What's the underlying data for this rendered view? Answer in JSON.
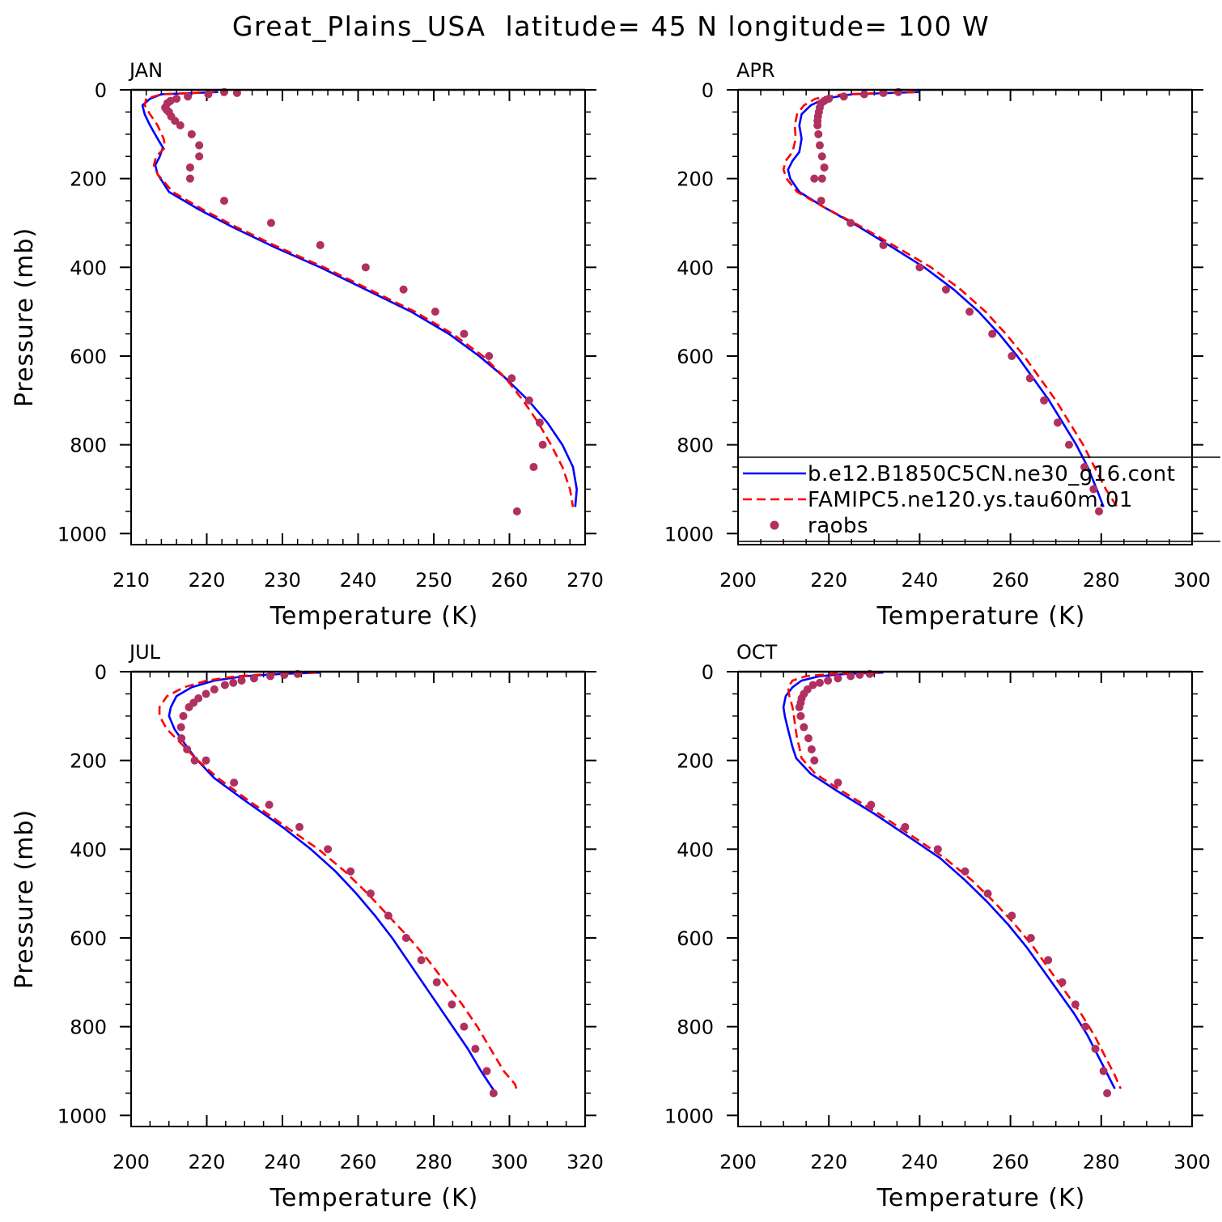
{
  "figure": {
    "title": "Great_Plains_USA  latitude= 45 N longitude= 100 W"
  },
  "legend": {
    "entries": [
      {
        "label": "b.e12.B1850C5CN.ne30_g16.cont",
        "color": "#0000ff",
        "style": "solid"
      },
      {
        "label": "FAMIPC5.ne120.ys.tau60m.01",
        "color": "#ff0000",
        "style": "dashed"
      },
      {
        "label": "raobs",
        "color": "#b03060",
        "style": "dots"
      }
    ],
    "placement": "lower-right of APR panel"
  },
  "chart_data": [
    {
      "type": "line",
      "panel": "JAN",
      "title": "JAN",
      "xlabel": "Temperature (K)",
      "ylabel": "Pressure (mb)",
      "xlim": [
        210,
        270
      ],
      "ylim": [
        1025,
        0
      ],
      "xticks": [
        210,
        220,
        230,
        240,
        250,
        260,
        270
      ],
      "yticks": [
        0,
        200,
        400,
        600,
        800,
        1000
      ],
      "series": [
        {
          "name": "b.e12.B1850C5CN.ne30_g16.cont",
          "style": "solid",
          "color": "#0000ff",
          "x": [
            221.5,
            214.0,
            212.5,
            211.5,
            211.8,
            212.5,
            213.5,
            214.2,
            213.8,
            213.2,
            213.5,
            215.0,
            219.0,
            223.5,
            229.0,
            235.0,
            241.0,
            247.0,
            252.0,
            256.0,
            259.5,
            262.5,
            265.0,
            267.0,
            268.4,
            268.9,
            268.7
          ],
          "y": [
            5,
            10,
            20,
            35,
            55,
            80,
            110,
            130,
            150,
            170,
            190,
            230,
            270,
            310,
            355,
            400,
            450,
            500,
            550,
            600,
            650,
            700,
            750,
            800,
            850,
            900,
            940
          ]
        },
        {
          "name": "FAMIPC5.ne120.ys.tau60m.01",
          "style": "dashed",
          "color": "#ff0000",
          "x": [
            221.0,
            214.0,
            212.0,
            211.8,
            212.5,
            213.5,
            214.3,
            214.5,
            213.3,
            213.0,
            213.5,
            215.5,
            219.5,
            224.0,
            229.5,
            235.5,
            241.5,
            247.5,
            252.5,
            256.5,
            259.5,
            261.8,
            263.8,
            265.5,
            267.0,
            268.0,
            268.4
          ],
          "y": [
            5,
            10,
            20,
            35,
            55,
            80,
            110,
            130,
            150,
            170,
            190,
            230,
            270,
            310,
            355,
            400,
            450,
            500,
            550,
            600,
            650,
            700,
            750,
            800,
            850,
            900,
            940
          ]
        },
        {
          "name": "raobs",
          "style": "dots",
          "color": "#b03060",
          "x": [
            224.0,
            222.3,
            220.2,
            217.5,
            216.0,
            215.2,
            214.8,
            214.5,
            214.7,
            215.0,
            215.3,
            215.8,
            216.5,
            218.0,
            219.0,
            219.0,
            217.8,
            217.8,
            222.3,
            228.5,
            235.0,
            241.0,
            246.0,
            250.2,
            254.0,
            257.3,
            260.3,
            262.6,
            264.0,
            264.4,
            263.2,
            261.0
          ],
          "y": [
            7,
            5,
            10,
            15,
            20,
            25,
            30,
            40,
            45,
            50,
            60,
            70,
            80,
            100,
            125,
            150,
            175,
            200,
            250,
            300,
            350,
            400,
            450,
            500,
            550,
            600,
            650,
            700,
            750,
            800,
            850,
            950
          ]
        }
      ]
    },
    {
      "type": "line",
      "panel": "APR",
      "title": "APR",
      "xlabel": "Temperature (K)",
      "ylabel": "",
      "xlim": [
        200,
        300
      ],
      "ylim": [
        1025,
        0
      ],
      "xticks": [
        200,
        220,
        240,
        260,
        280,
        300
      ],
      "yticks": [
        0,
        200,
        400,
        600,
        800,
        1000
      ],
      "series": [
        {
          "name": "b.e12.B1850C5CN.ne30_g16.cont",
          "style": "solid",
          "color": "#0000ff",
          "x": [
            240.0,
            225.0,
            219.0,
            216.0,
            214.0,
            213.5,
            214.0,
            213.5,
            212.0,
            211.0,
            211.5,
            213.5,
            219.0,
            226.0,
            234.0,
            241.0,
            247.5,
            253.0,
            257.5,
            261.5,
            265.0,
            268.5,
            271.5,
            274.5,
            277.0,
            279.0,
            280.5
          ],
          "y": [
            5,
            10,
            20,
            35,
            55,
            80,
            110,
            140,
            160,
            180,
            200,
            230,
            265,
            305,
            355,
            400,
            450,
            500,
            550,
            600,
            650,
            700,
            750,
            800,
            850,
            900,
            940
          ]
        },
        {
          "name": "FAMIPC5.ne120.ys.tau60m.01",
          "style": "dashed",
          "color": "#ff0000",
          "x": [
            239.0,
            223.0,
            217.0,
            214.5,
            213.0,
            212.5,
            212.7,
            212.0,
            210.5,
            210.0,
            210.7,
            213.0,
            219.0,
            226.5,
            235.0,
            242.5,
            249.0,
            254.5,
            259.0,
            263.0,
            266.5,
            270.0,
            273.0,
            276.0,
            278.5,
            281.0,
            283.5
          ],
          "y": [
            5,
            10,
            20,
            35,
            55,
            80,
            110,
            140,
            160,
            180,
            200,
            230,
            265,
            305,
            355,
            400,
            450,
            500,
            550,
            600,
            650,
            700,
            750,
            800,
            850,
            900,
            940
          ]
        },
        {
          "name": "raobs",
          "style": "dots",
          "color": "#b03060",
          "x": [
            235.3,
            232.0,
            227.8,
            223.3,
            220.0,
            219.0,
            218.3,
            218.0,
            217.8,
            217.6,
            217.5,
            217.5,
            217.7,
            218.0,
            218.5,
            219.0,
            218.5,
            216.8,
            218.3,
            224.8,
            232.0,
            240.0,
            245.8,
            251.0,
            256.0,
            260.3,
            264.3,
            267.4,
            270.4,
            272.9,
            276.3,
            278.3,
            279.5
          ],
          "y": [
            5,
            7,
            10,
            15,
            20,
            25,
            30,
            40,
            50,
            60,
            70,
            80,
            100,
            125,
            150,
            175,
            200,
            200,
            250,
            300,
            350,
            400,
            450,
            500,
            550,
            600,
            650,
            700,
            750,
            800,
            850,
            900,
            950
          ]
        }
      ]
    },
    {
      "type": "line",
      "panel": "JUL",
      "title": "JUL",
      "xlabel": "Temperature (K)",
      "ylabel": "Pressure (mb)",
      "xlim": [
        200,
        320
      ],
      "ylim": [
        1025,
        0
      ],
      "xticks": [
        200,
        220,
        240,
        260,
        280,
        300,
        320
      ],
      "yticks": [
        0,
        200,
        400,
        600,
        800,
        1000
      ],
      "series": [
        {
          "name": "b.e12.B1850C5CN.ne30_g16.cont",
          "style": "solid",
          "color": "#0000ff",
          "x": [
            250.0,
            240.0,
            230.0,
            222.0,
            216.0,
            212.0,
            210.5,
            210.0,
            211.5,
            214.0,
            217.0,
            222.0,
            230.0,
            240.0,
            247.5,
            254.0,
            259.5,
            264.5,
            269.0,
            273.0,
            277.0,
            281.0,
            285.0,
            289.0,
            292.5,
            294.8,
            296.0
          ],
          "y": [
            2,
            5,
            10,
            20,
            35,
            55,
            80,
            100,
            130,
            160,
            195,
            240,
            290,
            350,
            400,
            450,
            500,
            550,
            600,
            650,
            700,
            750,
            800,
            850,
            900,
            930,
            945
          ]
        },
        {
          "name": "FAMIPC5.ne120.ys.tau60m.01",
          "style": "dashed",
          "color": "#ff0000",
          "x": [
            249.0,
            238.0,
            228.0,
            220.0,
            214.0,
            209.5,
            207.5,
            207.5,
            209.5,
            213.0,
            217.0,
            223.0,
            231.0,
            241.0,
            249.5,
            256.5,
            262.5,
            268.0,
            273.5,
            278.5,
            283.0,
            287.5,
            291.5,
            295.0,
            298.5,
            301.5,
            302.0
          ],
          "y": [
            2,
            5,
            10,
            20,
            35,
            55,
            80,
            100,
            130,
            160,
            195,
            240,
            290,
            350,
            400,
            450,
            500,
            550,
            600,
            650,
            700,
            750,
            800,
            850,
            900,
            930,
            945
          ]
        },
        {
          "name": "raobs",
          "style": "dots",
          "color": "#b03060",
          "x": [
            244.0,
            240.5,
            236.8,
            232.5,
            229.2,
            227.0,
            224.8,
            222.0,
            219.8,
            217.8,
            216.5,
            215.3,
            213.8,
            213.2,
            213.3,
            214.8,
            216.8,
            219.8,
            227.2,
            236.5,
            244.5,
            252.0,
            258.0,
            263.3,
            268.0,
            272.7,
            276.7,
            280.8,
            284.8,
            288.0,
            291.0,
            294.0,
            295.8
          ],
          "y": [
            5,
            7,
            10,
            15,
            20,
            25,
            30,
            40,
            50,
            60,
            70,
            80,
            100,
            125,
            150,
            175,
            200,
            200,
            250,
            300,
            350,
            400,
            450,
            500,
            550,
            600,
            650,
            700,
            750,
            800,
            850,
            900,
            950
          ]
        }
      ]
    },
    {
      "type": "line",
      "panel": "OCT",
      "title": "OCT",
      "xlabel": "Temperature (K)",
      "ylabel": "",
      "xlim": [
        200,
        300
      ],
      "ylim": [
        1025,
        0
      ],
      "xticks": [
        200,
        220,
        240,
        260,
        280,
        300
      ],
      "yticks": [
        0,
        200,
        400,
        600,
        800,
        1000
      ],
      "series": [
        {
          "name": "b.e12.B1850C5CN.ne30_g16.cont",
          "style": "solid",
          "color": "#0000ff",
          "x": [
            232.0,
            224.0,
            218.0,
            214.0,
            212.0,
            210.5,
            210.0,
            210.3,
            211.0,
            211.5,
            212.0,
            212.8,
            216.0,
            222.0,
            230.0,
            238.0,
            244.5,
            250.0,
            255.0,
            259.5,
            263.5,
            267.0,
            270.5,
            274.0,
            277.0,
            279.5,
            281.5,
            283.0
          ],
          "y": [
            2,
            5,
            10,
            20,
            35,
            55,
            80,
            100,
            130,
            150,
            170,
            195,
            230,
            270,
            320,
            375,
            420,
            470,
            520,
            570,
            620,
            670,
            720,
            770,
            820,
            870,
            910,
            940
          ]
        },
        {
          "name": "FAMIPC5.ne120.ys.tau60m.01",
          "style": "dashed",
          "color": "#ff0000",
          "x": [
            231.0,
            221.0,
            215.0,
            212.0,
            211.0,
            211.3,
            212.0,
            212.3,
            212.7,
            213.0,
            213.5,
            214.0,
            217.0,
            223.0,
            231.0,
            239.0,
            245.5,
            251.5,
            256.5,
            261.0,
            265.0,
            268.5,
            272.0,
            275.5,
            278.5,
            281.0,
            283.0,
            284.3
          ],
          "y": [
            2,
            5,
            10,
            20,
            35,
            55,
            80,
            100,
            130,
            150,
            170,
            195,
            230,
            270,
            320,
            375,
            420,
            470,
            520,
            570,
            620,
            670,
            720,
            770,
            820,
            870,
            910,
            940
          ]
        },
        {
          "name": "raobs",
          "style": "dots",
          "color": "#b03060",
          "x": [
            229.0,
            226.8,
            224.8,
            222.0,
            219.8,
            218.0,
            216.5,
            215.3,
            214.5,
            214.0,
            213.8,
            213.5,
            213.8,
            214.5,
            215.5,
            216.2,
            216.8,
            222.0,
            229.3,
            236.8,
            244.0,
            250.0,
            255.0,
            260.3,
            264.5,
            268.3,
            271.4,
            274.3,
            276.5,
            278.7,
            280.5,
            281.3
          ],
          "y": [
            5,
            7,
            10,
            15,
            20,
            25,
            30,
            40,
            50,
            60,
            70,
            80,
            100,
            125,
            150,
            175,
            200,
            250,
            300,
            350,
            400,
            450,
            500,
            550,
            600,
            650,
            700,
            750,
            800,
            850,
            900,
            950
          ]
        }
      ]
    }
  ]
}
